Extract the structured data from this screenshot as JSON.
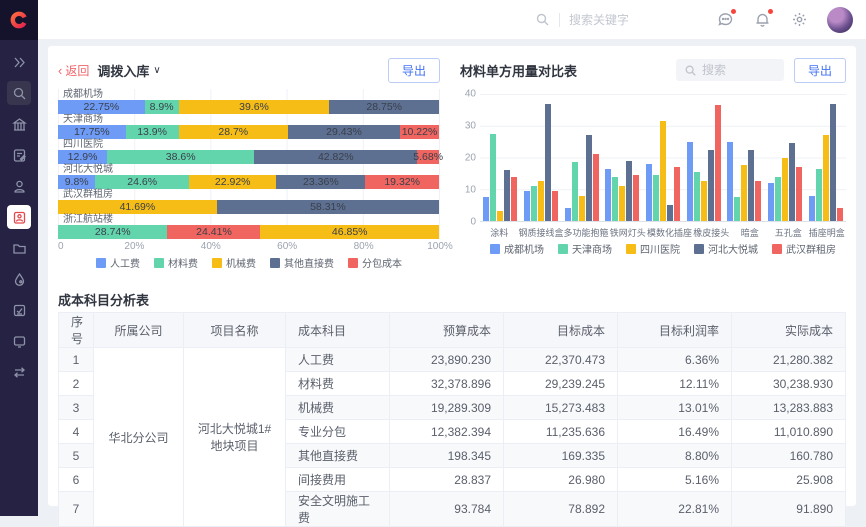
{
  "topbar": {
    "search_placeholder": "搜索关键字",
    "icons": [
      "search-icon",
      "message-icon",
      "bell-icon",
      "gear-icon",
      "avatar"
    ],
    "badges": {
      "message_dot": true,
      "bell_dot": true
    }
  },
  "sidebar": {
    "icons": [
      "collapse-expand",
      "search",
      "bank-building",
      "document-edit",
      "stamp-user",
      "project-clipboard-active",
      "folder",
      "water-drop",
      "report-card",
      "device-screen",
      "transfer-list"
    ],
    "active_icon": "project-clipboard-active"
  },
  "colors": {
    "accent_blue": "#4272F5",
    "back_red": "#F0656A",
    "sidebar_bg": "#252243",
    "active_red": "#E5484D",
    "series_blue": "#6E9BF5",
    "series_green": "#62D5AC",
    "series_yellow": "#F6BD16",
    "series_dark": "#5D7092",
    "series_red": "#F0655F"
  },
  "panel_transfer": {
    "back_label": "返回",
    "title": "调拨入库",
    "export_label": "导出"
  },
  "panel_material": {
    "title": "材料单方用量对比表",
    "search_placeholder": "搜索",
    "export_label": "导出"
  },
  "chart_data": [
    {
      "type": "bar",
      "orientation": "horizontal-stacked",
      "title": "调拨入库",
      "x_ticks": [
        "0",
        "20%",
        "40%",
        "60%",
        "80%",
        "100%"
      ],
      "xlim": [
        0,
        100
      ],
      "grid": true,
      "legend_position": "bottom",
      "series": [
        {
          "name": "人工费",
          "color": "#6E9BF5"
        },
        {
          "name": "材料费",
          "color": "#62D5AC"
        },
        {
          "name": "机械费",
          "color": "#F6BD16"
        },
        {
          "name": "其他直接费",
          "color": "#5D7092"
        },
        {
          "name": "分包成本",
          "color": "#F0655F"
        }
      ],
      "rows": [
        {
          "label": "成都机场",
          "segments": [
            {
              "series": "人工费",
              "value": 22.75
            },
            {
              "series": "材料费",
              "value": 8.9
            },
            {
              "series": "机械费",
              "value": 39.6
            },
            {
              "series": "其他直接费",
              "value": 28.75
            }
          ]
        },
        {
          "label": "天津商场",
          "segments": [
            {
              "series": "人工费",
              "value": 17.75
            },
            {
              "series": "材料费",
              "value": 13.9
            },
            {
              "series": "机械费",
              "value": 28.7
            },
            {
              "series": "其他直接费",
              "value": 29.43
            },
            {
              "series": "分包成本",
              "value": 10.22
            }
          ]
        },
        {
          "label": "四川医院",
          "segments": [
            {
              "series": "人工费",
              "value": 12.9
            },
            {
              "series": "材料费",
              "value": 38.6
            },
            {
              "series": "其他直接费",
              "value": 42.82
            },
            {
              "series": "分包成本",
              "value": 5.68
            }
          ]
        },
        {
          "label": "河北大悦城",
          "segments": [
            {
              "series": "人工费",
              "value": 9.8
            },
            {
              "series": "材料费",
              "value": 24.6
            },
            {
              "series": "机械费",
              "value": 22.92
            },
            {
              "series": "其他直接费",
              "value": 23.36
            },
            {
              "series": "分包成本",
              "value": 19.32
            }
          ]
        },
        {
          "label": "武汉群租房",
          "segments": [
            {
              "series": "机械费",
              "value": 41.69
            },
            {
              "series": "其他直接费",
              "value": 58.31
            }
          ]
        },
        {
          "label": "浙江航站楼",
          "segments": [
            {
              "series": "材料费",
              "value": 28.74
            },
            {
              "series": "分包成本",
              "value": 24.41
            },
            {
              "series": "机械费",
              "value": 46.85
            }
          ]
        }
      ]
    },
    {
      "type": "bar",
      "orientation": "vertical-grouped",
      "title": "材料单方用量对比表",
      "categories": [
        "涂料",
        "钢质接线盒",
        "多功能抱箍",
        "铁网灯头",
        "模数化插座",
        "橡皮接头",
        "暗盒",
        "五孔盒",
        "插座明盒"
      ],
      "y_ticks": [
        0,
        10,
        20,
        30,
        40
      ],
      "ylim": [
        0,
        40
      ],
      "grid": true,
      "legend_position": "bottom",
      "series": [
        {
          "name": "成都机场",
          "color": "#6E9BF5",
          "values": [
            7.5,
            9.5,
            4,
            16.5,
            18,
            25,
            25,
            12,
            8
          ]
        },
        {
          "name": "天津商场",
          "color": "#62D5AC",
          "values": [
            27.5,
            11,
            18.5,
            14,
            14.5,
            15.5,
            7.5,
            14,
            16.5
          ]
        },
        {
          "name": "四川医院",
          "color": "#F6BD16",
          "values": [
            3,
            12.5,
            8,
            11,
            31.5,
            12.5,
            17.5,
            20,
            27
          ]
        },
        {
          "name": "河北大悦城",
          "color": "#5D7092",
          "values": [
            16,
            37,
            27,
            19,
            5,
            22.5,
            22.5,
            24.5,
            37
          ]
        },
        {
          "name": "武汉群租房",
          "color": "#F0655F",
          "values": [
            14,
            9.5,
            21,
            14.5,
            17,
            36.5,
            12.5,
            17,
            4
          ]
        }
      ]
    }
  ],
  "table": {
    "title": "成本科目分析表",
    "headers": [
      "序号",
      "所属公司",
      "项目名称",
      "成本科目",
      "预算成本",
      "目标成本",
      "目标利润率",
      "实际成本"
    ],
    "company": "华北分公司",
    "project": "河北大悦城1#地块项目",
    "rows": [
      {
        "no": "1",
        "item": "人工费",
        "budget": "23,890.230",
        "target": "22,370.473",
        "margin": "6.36%",
        "actual": "21,280.382"
      },
      {
        "no": "2",
        "item": "材料费",
        "budget": "32,378.896",
        "target": "29,239.245",
        "margin": "12.11%",
        "actual": "30,238.930"
      },
      {
        "no": "3",
        "item": "机械费",
        "budget": "19,289.309",
        "target": "15,273.483",
        "margin": "13.01%",
        "actual": "13,283.883"
      },
      {
        "no": "4",
        "item": "专业分包",
        "budget": "12,382.394",
        "target": "11,235.636",
        "margin": "16.49%",
        "actual": "11,010.890"
      },
      {
        "no": "5",
        "item": "其他直接费",
        "budget": "198.345",
        "target": "169.335",
        "margin": "8.80%",
        "actual": "160.780"
      },
      {
        "no": "6",
        "item": "间接费用",
        "budget": "28.837",
        "target": "26.980",
        "margin": "5.16%",
        "actual": "25.908"
      },
      {
        "no": "7",
        "item": "安全文明施工费",
        "budget": "93.784",
        "target": "78.892",
        "margin": "22.81%",
        "actual": "91.890"
      }
    ]
  }
}
